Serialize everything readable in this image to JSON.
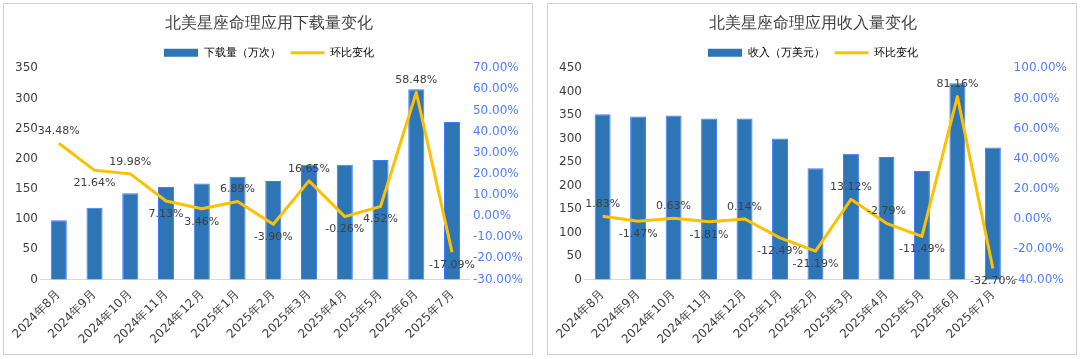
{
  "chart_data": [
    {
      "type": "bar",
      "title": "北美星座命理应用下载量变化",
      "categories": [
        "2024年8月",
        "2024年9月",
        "2024年10月",
        "2024年11月",
        "2024年12月",
        "2025年1月",
        "2025年2月",
        "2025年3月",
        "2025年4月",
        "2025年5月",
        "2025年6月",
        "2025年7月"
      ],
      "series": [
        {
          "name": "下载量（万次）",
          "color": "#2e75b6",
          "values": [
            98,
            119,
            143,
            153,
            159,
            170,
            163,
            190,
            190,
            198,
            315,
            261
          ]
        },
        {
          "name": "环比变化",
          "type": "line",
          "axis": "y2",
          "color": "#ffc000",
          "values": [
            34.48,
            21.64,
            19.98,
            7.13,
            3.46,
            6.89,
            -3.9,
            16.65,
            -0.26,
            4.52,
            58.48,
            -17.09
          ],
          "value_labels": [
            "34.48%",
            "21.64%",
            "19.98%",
            "7.13%",
            "3.46%",
            "6.89%",
            "-3.90%",
            "16.65%",
            "-0.26%",
            "4.52%",
            "58.48%",
            "-17.09%"
          ]
        }
      ],
      "ylim": [
        0,
        350
      ],
      "yticks": [
        0,
        50,
        100,
        150,
        200,
        250,
        300,
        350
      ],
      "y2lim": [
        -30,
        70
      ],
      "y2ticks": [
        {
          "value": -30,
          "label": "-30.00%"
        },
        {
          "value": -20,
          "label": "-20.00%"
        },
        {
          "value": -10,
          "label": "-10.00%"
        },
        {
          "value": 0,
          "label": "0.00%"
        },
        {
          "value": 10,
          "label": "10.00%"
        },
        {
          "value": 20,
          "label": "20.00%"
        },
        {
          "value": 30,
          "label": "30.00%"
        },
        {
          "value": 40,
          "label": "40.00%"
        },
        {
          "value": 50,
          "label": "50.00%"
        },
        {
          "value": 60,
          "label": "60.00%"
        },
        {
          "value": 70,
          "label": "70.00%"
        }
      ],
      "legend": "top",
      "grid": false,
      "marker": "none",
      "line_style": "solid"
    },
    {
      "type": "bar",
      "title": "北美星座命理应用收入量变化",
      "categories": [
        "2024年8月",
        "2024年9月",
        "2024年10月",
        "2024年11月",
        "2024年12月",
        "2025年1月",
        "2025年2月",
        "2025年3月",
        "2025年4月",
        "2025年5月",
        "2025年6月",
        "2025年7月"
      ],
      "series": [
        {
          "name": "收入（万美元）",
          "color": "#2e75b6",
          "values": [
            352,
            347,
            349,
            343,
            343,
            300,
            237,
            268,
            261,
            231,
            418,
            281
          ]
        },
        {
          "name": "环比变化",
          "type": "line",
          "axis": "y2",
          "color": "#ffc000",
          "values": [
            1.83,
            -1.47,
            0.63,
            -1.81,
            0.14,
            -12.49,
            -21.19,
            13.12,
            -2.79,
            -11.49,
            81.16,
            -32.7
          ],
          "value_labels": [
            "1.83%",
            "-1.47%",
            "0.63%",
            "-1.81%",
            "0.14%",
            "-12.49%",
            "-21.19%",
            "13.12%",
            "-2.79%",
            "-11.49%",
            "81.16%",
            "-32.70%"
          ]
        }
      ],
      "ylim": [
        0,
        450
      ],
      "yticks": [
        0,
        50,
        100,
        150,
        200,
        250,
        300,
        350,
        400,
        450
      ],
      "y2lim": [
        -40,
        100
      ],
      "y2ticks": [
        {
          "value": -40,
          "label": "-40.00%"
        },
        {
          "value": -20,
          "label": "-20.00%"
        },
        {
          "value": 0,
          "label": "0.00%"
        },
        {
          "value": 20,
          "label": "20.00%"
        },
        {
          "value": 40,
          "label": "40.00%"
        },
        {
          "value": 60,
          "label": "60.00%"
        },
        {
          "value": 80,
          "label": "80.00%"
        },
        {
          "value": 100,
          "label": "100.00%"
        }
      ],
      "legend": "top",
      "grid": false,
      "marker": "none",
      "line_style": "solid"
    }
  ]
}
